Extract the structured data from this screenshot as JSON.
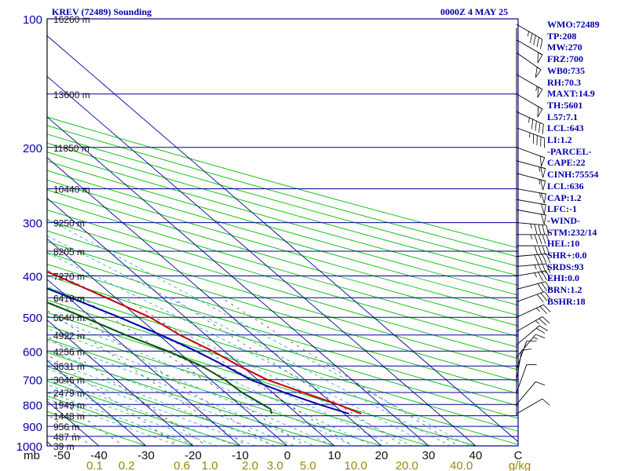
{
  "header": {
    "title": "KREV (72489) Sounding",
    "time": "0000Z  4 MAY 25"
  },
  "colors": {
    "frame": "#000099",
    "isotherm": "#000099",
    "dry_adiabat": "#00bb00",
    "moist_adiabat": "#33aadd",
    "mixing_ratio": "#444444",
    "temperature": "#cc0000",
    "dewpoint": "#005500",
    "parcel": "#0000aa",
    "text": "#0000aa",
    "mixing_label": "#998800"
  },
  "chart_data": {
    "type": "line",
    "title": "KREV (72489) Sounding",
    "diagram": "skew-T log-P",
    "y_scale": "log",
    "ylim": [
      1000,
      100
    ],
    "xlim": [
      -50,
      50
    ],
    "pressure_labels": [
      "100",
      "200",
      "300",
      "400",
      "500",
      "600",
      "700",
      "800",
      "900",
      "1000"
    ],
    "pressure_ticks": [
      100,
      200,
      300,
      400,
      500,
      600,
      700,
      800,
      900,
      1000
    ],
    "x_unit_label": "mb",
    "temperature_ticks": [
      "-50",
      "-40",
      "-30",
      "-20",
      "-10",
      "0",
      "10",
      "20",
      "30",
      "40",
      "C"
    ],
    "mixing_ratio_ticks": [
      "0.1",
      "0.2",
      "0.6",
      "1.0",
      "2.0",
      "3.0",
      "5.0",
      "10.0",
      "20.0",
      "40.0",
      "g/kg"
    ],
    "mixing_ratio_values": [
      0.1,
      0.2,
      0.6,
      1.0,
      2.0,
      3.0,
      5.0,
      10.0,
      20.0,
      40.0
    ],
    "height_levels": [
      {
        "p": 100,
        "label": "16260 m"
      },
      {
        "p": 150,
        "label": "13600 m"
      },
      {
        "p": 200,
        "label": "11850 m"
      },
      {
        "p": 250,
        "label": "10440 m"
      },
      {
        "p": 300,
        "label": "9250 m"
      },
      {
        "p": 350,
        "label": "8205 m"
      },
      {
        "p": 400,
        "label": "7270 m"
      },
      {
        "p": 450,
        "label": "6419 m"
      },
      {
        "p": 500,
        "label": "5640 m"
      },
      {
        "p": 550,
        "label": "4922 m"
      },
      {
        "p": 600,
        "label": "4256 m"
      },
      {
        "p": 650,
        "label": "3631 m"
      },
      {
        "p": 700,
        "label": "3046 m"
      },
      {
        "p": 750,
        "label": "2479 m"
      },
      {
        "p": 800,
        "label": "1949 m"
      },
      {
        "p": 850,
        "label": "1448 m"
      },
      {
        "p": 900,
        "label": "956 m"
      },
      {
        "p": 950,
        "label": "487 m"
      },
      {
        "p": 1000,
        "label": "39 m"
      }
    ],
    "series": [
      {
        "key": "temperature",
        "points": [
          [
            841,
            23.6
          ],
          [
            800,
            21.0
          ],
          [
            750,
            16.5
          ],
          [
            700,
            12.0
          ],
          [
            650,
            9.5
          ],
          [
            600,
            7.5
          ],
          [
            550,
            4.5
          ],
          [
            500,
            2.5
          ],
          [
            450,
            -2.0
          ],
          [
            400,
            -7.0
          ],
          [
            350,
            -13.5
          ],
          [
            300,
            -21.5
          ],
          [
            270,
            -26.0
          ],
          [
            250,
            -31.5
          ],
          [
            240,
            -30.0
          ],
          [
            225,
            -28.5
          ],
          [
            210,
            -29.0
          ],
          [
            200,
            -29.0
          ],
          [
            190,
            -27.5
          ],
          [
            180,
            -20.0
          ],
          [
            170,
            -16.0
          ],
          [
            160,
            -13.0
          ],
          [
            150,
            -10.0
          ],
          [
            130,
            -7.0
          ],
          [
            115,
            -6.0
          ],
          [
            100,
            -3.0
          ]
        ]
      },
      {
        "key": "dewpoint",
        "points": [
          [
            841,
            4.6
          ],
          [
            820,
            5.5
          ],
          [
            800,
            5.0
          ],
          [
            750,
            3.5
          ],
          [
            700,
            3.0
          ],
          [
            650,
            1.5
          ],
          [
            600,
            -2.0
          ],
          [
            550,
            -7.0
          ],
          [
            500,
            -11.5
          ],
          [
            450,
            -17.0
          ],
          [
            400,
            -22.5
          ],
          [
            350,
            -26.0
          ],
          [
            300,
            -33.0
          ],
          [
            270,
            -37.0
          ],
          [
            250,
            -42.5
          ],
          [
            225,
            -42.5
          ],
          [
            200,
            -47.0
          ],
          [
            185,
            -46.0
          ],
          [
            170,
            -45.0
          ],
          [
            160,
            -43.0
          ],
          [
            150,
            -44.0
          ],
          [
            140,
            -43.0
          ],
          [
            120,
            -40.0
          ],
          [
            100,
            -43.0
          ]
        ]
      },
      {
        "key": "parcel",
        "points": [
          [
            841,
            21.0
          ],
          [
            800,
            17.0
          ],
          [
            750,
            12.5
          ],
          [
            700,
            8.5
          ],
          [
            650,
            6.5
          ],
          [
            600,
            4.0
          ],
          [
            550,
            0.5
          ],
          [
            500,
            -4.0
          ],
          [
            450,
            -9.5
          ],
          [
            400,
            -16.0
          ],
          [
            350,
            -23.5
          ],
          [
            300,
            -33.0
          ],
          [
            270,
            -40.0
          ],
          [
            250,
            -44.0
          ],
          [
            225,
            -51.0
          ],
          [
            200,
            -59.0
          ],
          [
            175,
            -66.0
          ],
          [
            150,
            -73.0
          ],
          [
            130,
            -80.0
          ],
          [
            115,
            -85.0
          ]
        ]
      }
    ]
  },
  "indices": [
    "WMO:72489",
    "TP:208",
    "MW:270",
    "FRZ:700",
    "WB0:735",
    "RH:70.3",
    "MAXT:14.9",
    "TH:5601",
    "L57:7.1",
    "LCL:643",
    "LI:1.2",
    "-PARCEL-",
    "CAPE:22",
    "CINH:75554",
    "LCL:636",
    "CAP:1.2",
    "LFC:-1",
    "-WIND-",
    "STM:232/14",
    "HEL:10",
    "SHR+:0.0",
    "SRDS:93",
    "EHI:0.0",
    "BRN:1.2",
    "BSHR:18"
  ],
  "wind_barbs": [
    {
      "p": 103,
      "dir": 300,
      "spd": 45
    },
    {
      "p": 112,
      "dir": 300,
      "spd": 50
    },
    {
      "p": 120,
      "dir": 305,
      "spd": 50
    },
    {
      "p": 135,
      "dir": 300,
      "spd": 55
    },
    {
      "p": 150,
      "dir": 300,
      "spd": 50
    },
    {
      "p": 165,
      "dir": 295,
      "spd": 45
    },
    {
      "p": 180,
      "dir": 290,
      "spd": 45
    },
    {
      "p": 200,
      "dir": 290,
      "spd": 50
    },
    {
      "p": 215,
      "dir": 285,
      "spd": 55
    },
    {
      "p": 230,
      "dir": 285,
      "spd": 55
    },
    {
      "p": 250,
      "dir": 280,
      "spd": 55
    },
    {
      "p": 265,
      "dir": 280,
      "spd": 50
    },
    {
      "p": 280,
      "dir": 280,
      "spd": 50
    },
    {
      "p": 300,
      "dir": 275,
      "spd": 45
    },
    {
      "p": 320,
      "dir": 270,
      "spd": 45
    },
    {
      "p": 340,
      "dir": 270,
      "spd": 40
    },
    {
      "p": 360,
      "dir": 265,
      "spd": 40
    },
    {
      "p": 380,
      "dir": 265,
      "spd": 35
    },
    {
      "p": 400,
      "dir": 260,
      "spd": 35
    },
    {
      "p": 430,
      "dir": 255,
      "spd": 30
    },
    {
      "p": 460,
      "dir": 250,
      "spd": 30
    },
    {
      "p": 500,
      "dir": 245,
      "spd": 25
    },
    {
      "p": 540,
      "dir": 240,
      "spd": 25
    },
    {
      "p": 580,
      "dir": 230,
      "spd": 20
    },
    {
      "p": 620,
      "dir": 220,
      "spd": 15
    },
    {
      "p": 660,
      "dir": 200,
      "spd": 10
    },
    {
      "p": 700,
      "dir": 190,
      "spd": 10
    },
    {
      "p": 750,
      "dir": 200,
      "spd": 10
    },
    {
      "p": 800,
      "dir": 220,
      "spd": 10
    },
    {
      "p": 841,
      "dir": 240,
      "spd": 10
    }
  ]
}
